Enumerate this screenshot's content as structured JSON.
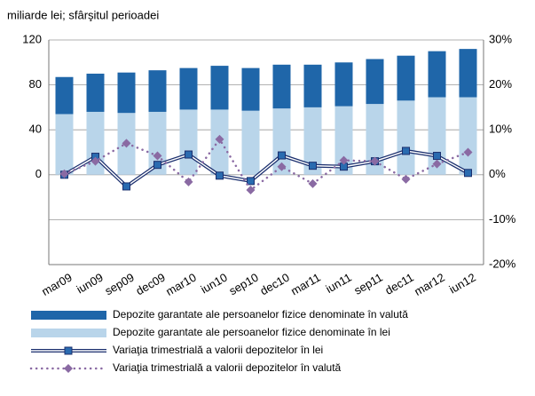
{
  "chart_data": {
    "type": "bar_line",
    "subtitle": "miliarde lei; sfârşitul perioadei",
    "categories": [
      "mar09",
      "iun09",
      "sep09",
      "dec09",
      "mar10",
      "iun10",
      "sep10",
      "dec10",
      "mar11",
      "iun11",
      "sep11",
      "dec11",
      "mar12",
      "iun12"
    ],
    "series": [
      {
        "name": "Depozite garantate ale persoanelor fizice denominate în lei",
        "type": "bar",
        "color": "#b9d5ea",
        "values": [
          54,
          56,
          55,
          56,
          58,
          58,
          57,
          59,
          60,
          61,
          63,
          66,
          69,
          69
        ]
      },
      {
        "name": "Depozite garantate ale persoanelor fizice denominate în valută",
        "type": "bar",
        "color": "#1f66a9",
        "values": [
          33,
          34,
          36,
          37,
          37,
          39,
          38,
          39,
          38,
          39,
          40,
          40,
          41,
          43
        ]
      },
      {
        "name": "Variaţia trimestrială a valorii depozitelor în lei",
        "type": "line",
        "axis": "y2",
        "color": "#1b2f6e",
        "values": [
          0.0,
          4.0,
          -2.6,
          2.2,
          4.5,
          -0.2,
          -1.4,
          4.3,
          2.0,
          1.8,
          3.0,
          5.3,
          4.2,
          0.4
        ]
      },
      {
        "name": "Variaţia trimestrială a valorii depozitelor în valută",
        "type": "dotted",
        "axis": "y2",
        "color": "#8a6aa3",
        "values": [
          0.2,
          3.0,
          7.0,
          4.2,
          -1.6,
          7.9,
          -3.4,
          1.8,
          -2.0,
          3.2,
          3.0,
          -1.0,
          2.4,
          5.0
        ]
      }
    ],
    "ylim": [
      -80,
      120
    ],
    "yticks": [
      0,
      40,
      80,
      120
    ],
    "y2lim": [
      -20,
      30
    ],
    "y2ticks": [
      {
        "value": -20,
        "label": "-20%"
      },
      {
        "value": -10,
        "label": "-10%"
      },
      {
        "value": 0,
        "label": "0%"
      },
      {
        "value": 10,
        "label": "10%"
      },
      {
        "value": 20,
        "label": "20%"
      },
      {
        "value": 30,
        "label": "30%"
      }
    ],
    "grid": true
  }
}
